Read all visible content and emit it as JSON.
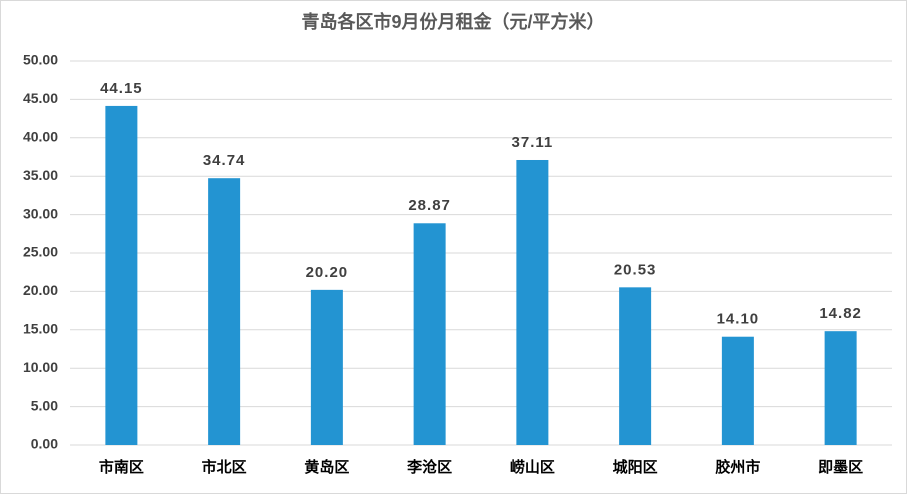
{
  "chart_data": {
    "type": "bar",
    "title": "青岛各区市9月份月租金（元/平方米）",
    "categories": [
      "市南区",
      "市北区",
      "黄岛区",
      "李沧区",
      "崂山区",
      "城阳区",
      "胶州市",
      "即墨区"
    ],
    "values": [
      44.15,
      34.74,
      20.2,
      28.87,
      37.11,
      20.53,
      14.1,
      14.82
    ],
    "value_labels": [
      "44.15",
      "34.74",
      "20.20",
      "28.87",
      "37.11",
      "20.53",
      "14.10",
      "14.82"
    ],
    "color": "#2394d2",
    "ylim": [
      0,
      50
    ],
    "yticks": [
      {
        "value": 0,
        "label": "0.00"
      },
      {
        "value": 5,
        "label": "5.00"
      },
      {
        "value": 10,
        "label": "10.00"
      },
      {
        "value": 15,
        "label": "15.00"
      },
      {
        "value": 20,
        "label": "20.00"
      },
      {
        "value": 25,
        "label": "25.00"
      },
      {
        "value": 30,
        "label": "30.00"
      },
      {
        "value": 35,
        "label": "35.00"
      },
      {
        "value": 40,
        "label": "40.00"
      },
      {
        "value": 45,
        "label": "45.00"
      },
      {
        "value": 50,
        "label": "50.00"
      }
    ],
    "grid": true
  }
}
